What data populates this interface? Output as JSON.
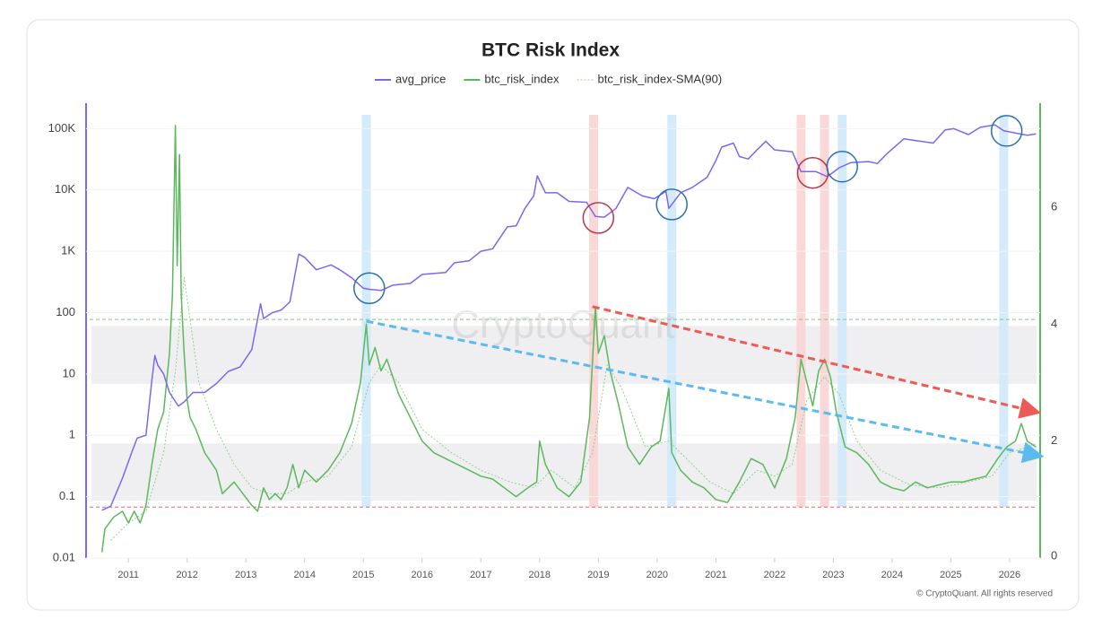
{
  "chart_data": {
    "type": "line",
    "title": "BTC Risk Index",
    "watermark": "CryptoQuant",
    "copyright": "© CryptoQuant. All rights reserved",
    "xlim": [
      2010.28,
      2026.52
    ],
    "xticks": [
      2011,
      2012,
      2013,
      2014,
      2015,
      2016,
      2017,
      2018,
      2019,
      2020,
      2021,
      2022,
      2023,
      2024,
      2025,
      2026
    ],
    "ylim": [
      0.01,
      260000
    ],
    "log_y": true,
    "yticks": [
      0.01,
      0.1,
      1,
      10,
      100,
      {
        "value": 1000,
        "label": "1K"
      },
      {
        "value": 10000,
        "label": "10K"
      },
      {
        "value": 100000,
        "label": "100K"
      }
    ],
    "y2lim": [
      0,
      7.78
    ],
    "y2ticks": [
      0,
      2,
      4,
      6
    ],
    "series": [
      {
        "name": "avg_price",
        "color": "#7b68ee",
        "style": "solid",
        "x": [
          2010.55,
          2010.7,
          2010.9,
          2011.05,
          2011.15,
          2011.3,
          2011.4,
          2011.45,
          2011.5,
          2011.6,
          2011.7,
          2011.85,
          2011.95,
          2012.1,
          2012.3,
          2012.5,
          2012.7,
          2012.9,
          2013.1,
          2013.25,
          2013.3,
          2013.45,
          2013.6,
          2013.75,
          2013.9,
          2014.0,
          2014.2,
          2014.45,
          2014.6,
          2014.8,
          2015.0,
          2015.1,
          2015.3,
          2015.5,
          2015.8,
          2016.0,
          2016.4,
          2016.55,
          2016.8,
          2017.0,
          2017.2,
          2017.45,
          2017.6,
          2017.75,
          2017.9,
          2017.96,
          2018.1,
          2018.3,
          2018.5,
          2018.8,
          2018.95,
          2019.1,
          2019.3,
          2019.5,
          2019.75,
          2019.95,
          2020.15,
          2020.2,
          2020.4,
          2020.6,
          2020.85,
          2021.0,
          2021.1,
          2021.3,
          2021.4,
          2021.55,
          2021.7,
          2021.85,
          2022.0,
          2022.3,
          2022.45,
          2022.7,
          2022.9,
          2023.1,
          2023.3,
          2023.6,
          2023.75,
          2023.9,
          2024.2,
          2024.5,
          2024.7,
          2024.9,
          2025.05,
          2025.3,
          2025.5,
          2025.75,
          2025.9,
          2026.1,
          2026.3,
          2026.45
        ],
        "values": [
          0.06,
          0.07,
          0.2,
          0.5,
          0.9,
          1,
          8,
          20,
          14,
          10,
          5,
          3,
          3.5,
          5,
          5,
          7,
          11,
          13,
          25,
          140,
          80,
          100,
          110,
          150,
          900,
          800,
          500,
          600,
          500,
          370,
          250,
          240,
          230,
          280,
          300,
          420,
          450,
          650,
          700,
          1000,
          1100,
          2500,
          2600,
          5000,
          8000,
          17000,
          9000,
          9000,
          6500,
          6300,
          3700,
          3600,
          5000,
          11000,
          8000,
          7200,
          9500,
          5000,
          9000,
          11000,
          16000,
          30000,
          50000,
          58000,
          35000,
          32000,
          45000,
          62000,
          45000,
          42000,
          20000,
          20000,
          16500,
          23000,
          28000,
          29000,
          27000,
          38000,
          68000,
          62000,
          58000,
          95000,
          100000,
          80000,
          105000,
          115000,
          92000,
          85000,
          78000,
          82000
        ]
      },
      {
        "name": "btc_risk_index",
        "color": "#5cb85c",
        "style": "solid",
        "axis": "y2",
        "x": [
          2010.55,
          2010.6,
          2010.75,
          2010.9,
          2011.0,
          2011.1,
          2011.2,
          2011.3,
          2011.4,
          2011.5,
          2011.6,
          2011.7,
          2011.75,
          2011.8,
          2011.83,
          2011.87,
          2011.9,
          2011.95,
          2012.0,
          2012.05,
          2012.15,
          2012.3,
          2012.5,
          2012.6,
          2012.8,
          2012.95,
          2013.1,
          2013.2,
          2013.3,
          2013.4,
          2013.5,
          2013.6,
          2013.7,
          2013.8,
          2013.9,
          2014.0,
          2014.2,
          2014.4,
          2014.6,
          2014.8,
          2014.95,
          2015.05,
          2015.1,
          2015.2,
          2015.3,
          2015.4,
          2015.6,
          2015.8,
          2016.0,
          2016.2,
          2016.4,
          2016.6,
          2016.8,
          2017.0,
          2017.2,
          2017.4,
          2017.6,
          2017.8,
          2017.95,
          2018.0,
          2018.1,
          2018.3,
          2018.5,
          2018.7,
          2018.85,
          2018.95,
          2019.0,
          2019.1,
          2019.2,
          2019.35,
          2019.5,
          2019.7,
          2019.9,
          2020.05,
          2020.2,
          2020.25,
          2020.4,
          2020.6,
          2020.8,
          2021.0,
          2021.2,
          2021.4,
          2021.6,
          2021.8,
          2022.0,
          2022.2,
          2022.35,
          2022.45,
          2022.55,
          2022.65,
          2022.75,
          2022.85,
          2022.95,
          2023.05,
          2023.2,
          2023.4,
          2023.6,
          2023.8,
          2024.0,
          2024.2,
          2024.4,
          2024.6,
          2024.8,
          2025.0,
          2025.2,
          2025.4,
          2025.6,
          2025.8,
          2025.95,
          2026.1,
          2026.2,
          2026.3,
          2026.45
        ],
        "values": [
          0.1,
          0.5,
          0.7,
          0.8,
          0.6,
          0.8,
          0.6,
          0.9,
          1.6,
          2.2,
          2.5,
          3.5,
          4.5,
          7.4,
          5.0,
          6.9,
          4.5,
          3.5,
          2.7,
          2.4,
          2.2,
          1.8,
          1.5,
          1.1,
          1.3,
          1.1,
          0.9,
          0.8,
          1.2,
          1.0,
          1.1,
          1.0,
          1.2,
          1.6,
          1.2,
          1.5,
          1.3,
          1.5,
          1.8,
          2.3,
          3.0,
          4.0,
          3.3,
          3.6,
          3.2,
          3.4,
          2.8,
          2.4,
          2.0,
          1.8,
          1.7,
          1.6,
          1.5,
          1.4,
          1.35,
          1.2,
          1.05,
          1.2,
          1.3,
          2.0,
          1.6,
          1.2,
          1.05,
          1.3,
          2.4,
          4.3,
          3.5,
          3.8,
          3.2,
          2.6,
          1.9,
          1.6,
          1.9,
          2.0,
          2.9,
          1.8,
          1.5,
          1.3,
          1.2,
          1.0,
          0.95,
          1.3,
          1.7,
          1.6,
          1.2,
          1.7,
          2.4,
          3.4,
          3.0,
          2.6,
          3.2,
          3.4,
          3.1,
          2.5,
          1.9,
          1.8,
          1.6,
          1.3,
          1.2,
          1.15,
          1.3,
          1.2,
          1.25,
          1.3,
          1.3,
          1.35,
          1.4,
          1.7,
          1.9,
          2.0,
          2.3,
          2.0,
          1.9
        ]
      },
      {
        "name": "btc_risk_index-SMA(90)",
        "color": "#8fd18f",
        "style": "dotted",
        "axis": "y2",
        "x": [
          2010.7,
          2011.0,
          2011.3,
          2011.6,
          2011.8,
          2011.95,
          2012.2,
          2012.5,
          2012.8,
          2013.1,
          2013.4,
          2013.7,
          2014.0,
          2014.4,
          2014.8,
          2015.1,
          2015.3,
          2015.6,
          2016.0,
          2016.5,
          2017.0,
          2017.5,
          2017.9,
          2018.2,
          2018.6,
          2018.9,
          2019.15,
          2019.4,
          2019.8,
          2020.2,
          2020.5,
          2020.9,
          2021.3,
          2021.7,
          2022.0,
          2022.3,
          2022.55,
          2022.85,
          2023.1,
          2023.4,
          2023.8,
          2024.3,
          2024.8,
          2025.3,
          2025.7,
          2026.0,
          2026.45
        ],
        "values": [
          0.3,
          0.6,
          0.8,
          1.8,
          3.2,
          4.8,
          3.0,
          2.2,
          1.6,
          1.2,
          1.1,
          1.1,
          1.3,
          1.4,
          1.9,
          3.0,
          3.3,
          3.0,
          2.2,
          1.8,
          1.5,
          1.3,
          1.2,
          1.5,
          1.2,
          1.8,
          3.3,
          2.9,
          1.9,
          2.0,
          1.7,
          1.3,
          1.1,
          1.5,
          1.4,
          1.6,
          2.7,
          3.1,
          2.8,
          2.0,
          1.5,
          1.25,
          1.2,
          1.3,
          1.4,
          1.8,
          1.95
        ]
      }
    ],
    "reference_lines": [
      {
        "y2": 4.08,
        "color": "#7cc97c"
      },
      {
        "y2": 0.87,
        "color": "#e46a6a"
      }
    ],
    "bands": [
      [
        2.98,
        3.97
      ],
      [
        0.98,
        1.96
      ]
    ],
    "highlight_bands": [
      {
        "x": 2015.05,
        "color": "#cfe9fb"
      },
      {
        "x": 2018.92,
        "color": "#fad4d4"
      },
      {
        "x": 2020.25,
        "color": "#cfe9fb"
      },
      {
        "x": 2022.45,
        "color": "#fad4d4"
      },
      {
        "x": 2022.85,
        "color": "#fad4d4"
      },
      {
        "x": 2023.15,
        "color": "#cfe9fb"
      },
      {
        "x": 2025.9,
        "color": "#cfe9fb"
      }
    ],
    "circles": [
      {
        "x": 2015.1,
        "y": 250,
        "color": "#2a6fb5"
      },
      {
        "x": 2019.0,
        "y": 3500,
        "color": "#b8394e"
      },
      {
        "x": 2020.25,
        "y": 5800,
        "color": "#2a6fb5"
      },
      {
        "x": 2022.65,
        "y": 19000,
        "color": "#b8394e"
      },
      {
        "x": 2023.15,
        "y": 24000,
        "color": "#2a6fb5"
      },
      {
        "x": 2025.95,
        "y": 92000,
        "color": "#2a6fb5"
      }
    ],
    "trend_lines": [
      {
        "x": [
          2018.9,
          2026.45
        ],
        "y2": [
          4.3,
          2.5
        ],
        "color": "#ec5b55"
      },
      {
        "x": [
          2015.05,
          2026.5
        ],
        "y2": [
          4.05,
          1.75
        ],
        "color": "#5bbbee"
      }
    ]
  }
}
